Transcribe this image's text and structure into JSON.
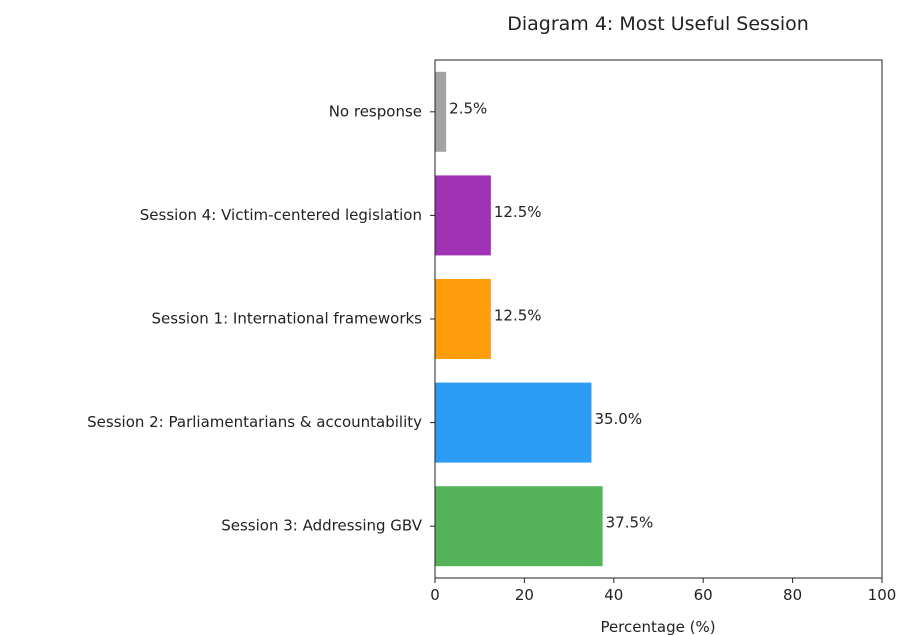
{
  "chart_data": {
    "type": "bar",
    "orientation": "horizontal",
    "title": "Diagram 4: Most Useful Session",
    "xlabel": "Percentage (%)",
    "ylabel": "",
    "xlim": [
      0,
      100
    ],
    "xticks": [
      0,
      20,
      40,
      60,
      80,
      100
    ],
    "grid": false,
    "categories": [
      "Session 3: Addressing GBV",
      "Session 2: Parliamentarians & accountability",
      "Session 1: International frameworks",
      "Session 4: Victim-centered legislation",
      "No response"
    ],
    "values": [
      37.5,
      35.0,
      12.5,
      12.5,
      2.5
    ],
    "value_labels": [
      "37.5%",
      "35.0%",
      "12.5%",
      "12.5%",
      "2.5%"
    ],
    "colors": [
      "#4caf50",
      "#2196f3",
      "#ff9800",
      "#9c27b0",
      "#9e9e9e"
    ]
  }
}
